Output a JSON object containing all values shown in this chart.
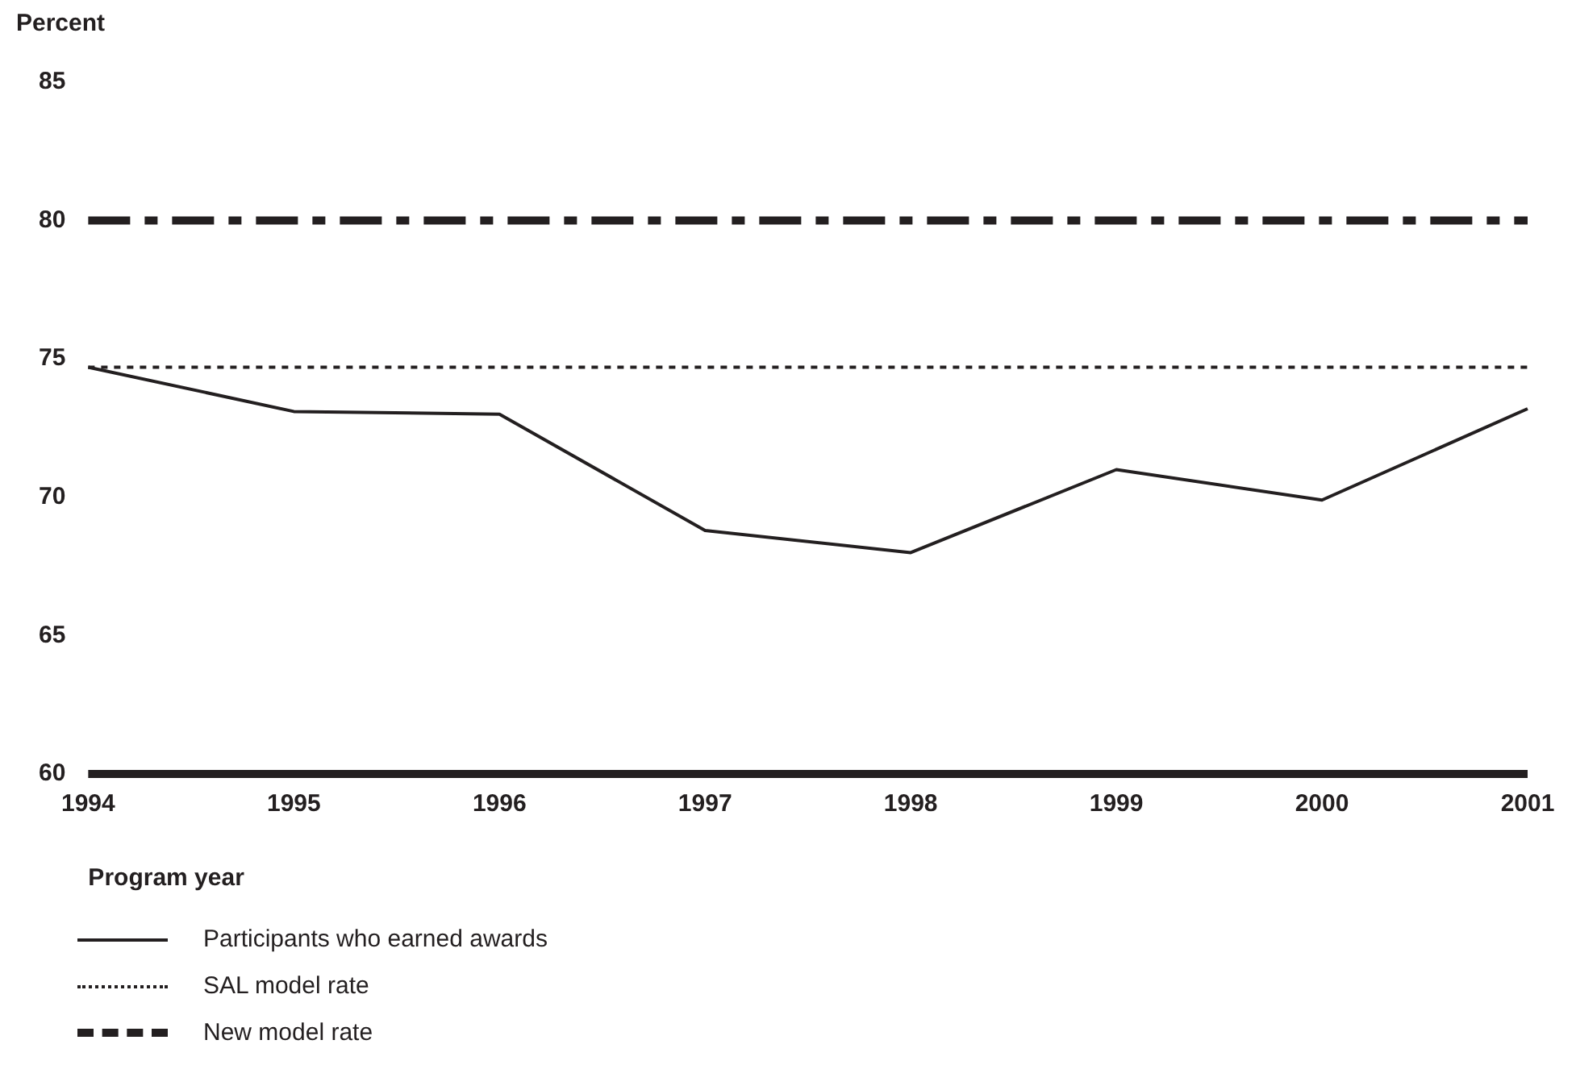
{
  "chart_data": {
    "type": "line",
    "ylabel": "Percent",
    "xlabel": "Program year",
    "categories": [
      "1994",
      "1995",
      "1996",
      "1997",
      "1998",
      "1999",
      "2000",
      "2001"
    ],
    "series": [
      {
        "name": "Participants who earned awards",
        "color": "#231f20",
        "line_style": "solid",
        "values": [
          74.7,
          73.1,
          73.0,
          68.8,
          68.0,
          71.0,
          69.9,
          73.2
        ]
      },
      {
        "name": "SAL model rate",
        "color": "#231f20",
        "line_style": "dotted",
        "values": [
          74.7,
          74.7,
          74.7,
          74.7,
          74.7,
          74.7,
          74.7,
          74.7
        ]
      },
      {
        "name": "New model rate",
        "color": "#231f20",
        "line_style": "dashed",
        "values": [
          80,
          80,
          80,
          80,
          80,
          80,
          80,
          80
        ]
      }
    ],
    "ref_lines": [
      {
        "axis": "y",
        "value": 60,
        "color": "#231f20",
        "line_style": "solid"
      }
    ],
    "ylim": [
      60,
      85
    ],
    "yticks": [
      60,
      65,
      70,
      75,
      80,
      85
    ],
    "grid": false,
    "legend": "bottom",
    "marker": "none"
  }
}
